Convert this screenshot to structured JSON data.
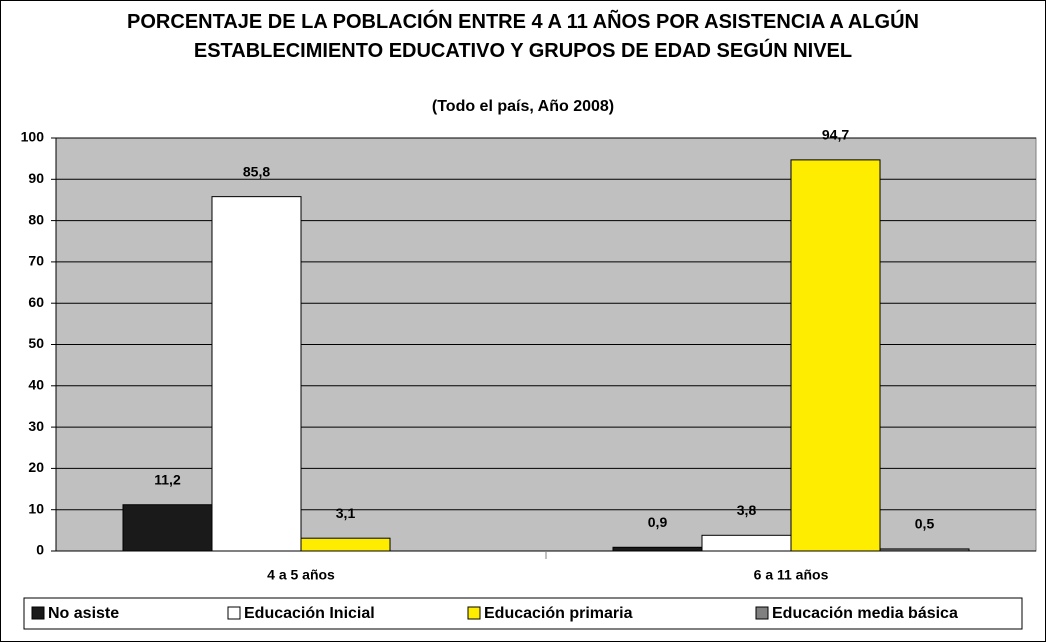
{
  "chart_data": {
    "type": "bar",
    "title": "PORCENTAJE DE LA POBLACIÓN ENTRE 4 A 11 AÑOS POR ASISTENCIA A ALGÚN ESTABLECIMIENTO EDUCATIVO Y GRUPOS DE EDAD SEGÚN NIVEL",
    "subtitle": "(Todo el país, Año 2008)",
    "categories": [
      "4 a 5 años",
      "6 a 11 años"
    ],
    "series": [
      {
        "name": "No asiste",
        "color": "#1a1a1a",
        "values": [
          11.2,
          0.9
        ],
        "value_labels": [
          "11,2",
          "0,9"
        ]
      },
      {
        "name": "Educación Inicial",
        "color": "#ffffff",
        "values": [
          85.8,
          3.8
        ],
        "value_labels": [
          "85,8",
          "3,8"
        ]
      },
      {
        "name": "Educación primaria",
        "color": "#ffed00",
        "values": [
          3.1,
          94.7
        ],
        "value_labels": [
          "3,1",
          "94,7"
        ]
      },
      {
        "name": "Educación media básica",
        "color": "#808080",
        "values": [
          null,
          0.5
        ],
        "value_labels": [
          null,
          "0,5"
        ]
      }
    ],
    "ylim": [
      0,
      100
    ],
    "yticks": [
      0,
      10,
      20,
      30,
      40,
      50,
      60,
      70,
      80,
      90,
      100
    ],
    "grid": true
  }
}
